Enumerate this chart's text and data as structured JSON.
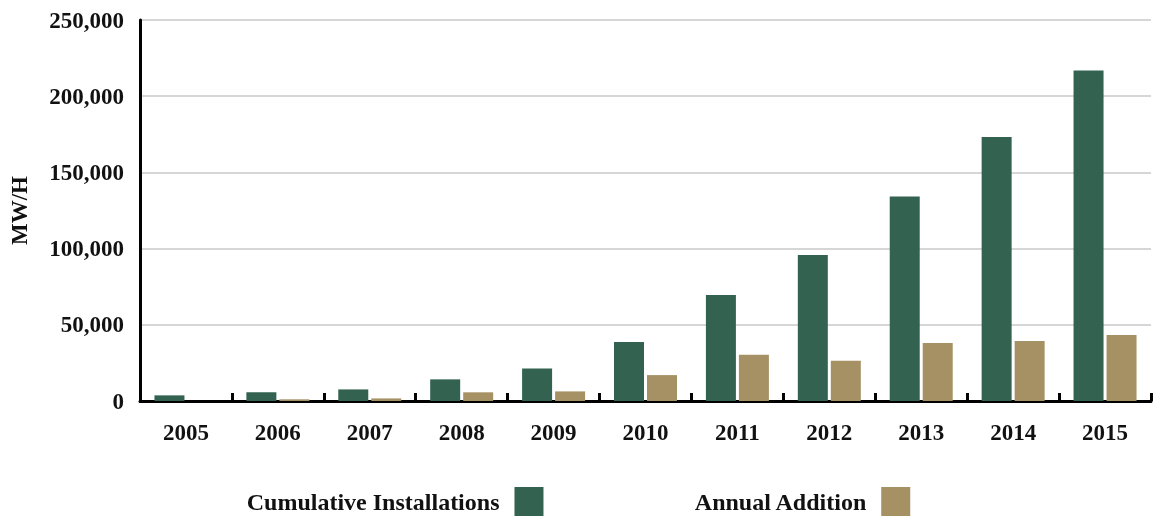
{
  "chart_data": {
    "type": "bar",
    "ylabel": "MW/H",
    "categories": [
      "2005",
      "2006",
      "2007",
      "2008",
      "2009",
      "2010",
      "2011",
      "2012",
      "2013",
      "2014",
      "2015"
    ],
    "series": [
      {
        "name": "Cumulative Installations",
        "color": "#336350",
        "values": [
          3700,
          5700,
          7600,
          14200,
          21400,
          38700,
          69500,
          95800,
          134200,
          173300,
          216900
        ]
      },
      {
        "name": "Annual Addition",
        "color": "#a69165",
        "values": [
          0,
          1100,
          1700,
          5700,
          6300,
          17000,
          30300,
          26400,
          38000,
          39400,
          43300
        ]
      }
    ],
    "ylim": [
      0,
      250000
    ],
    "yticks": [
      0,
      {
        "value": 50000,
        "label": "50,000"
      },
      {
        "value": 100000,
        "label": "100,000"
      },
      {
        "value": 150000,
        "label": "150,000"
      },
      {
        "value": 200000,
        "label": "200,000"
      },
      {
        "value": 250000,
        "label": "250,000"
      }
    ],
    "grid": "y",
    "legend": "bottom"
  }
}
